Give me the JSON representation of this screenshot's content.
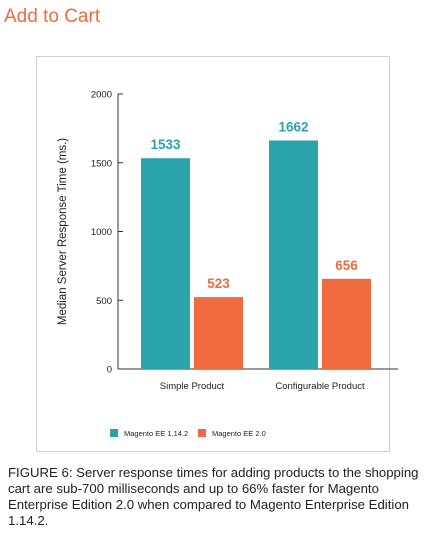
{
  "title": "Add to Cart",
  "caption": "FIGURE 6: Server response times for adding products to the shopping cart are sub-700 milliseconds and up to 66% faster for Magento Enterprise Edition 2.0 when compared to Magento Enterprise Edition 1.14.2.",
  "chart_data": {
    "type": "bar",
    "title": "",
    "xlabel": "",
    "ylabel": "Median Server Response Time (ms.)",
    "ylim": [
      0,
      2000
    ],
    "yticks": [
      0,
      500,
      1000,
      1500,
      2000
    ],
    "ytick_labels": [
      "0",
      "500",
      "1000",
      "1500",
      "2000"
    ],
    "categories": [
      "Simple Product",
      "Configurable Product"
    ],
    "series": [
      {
        "name": "Magento EE 1.14.2",
        "color": "#2aa3aa",
        "values": [
          1533,
          1662
        ],
        "labels": [
          "1533",
          "1662"
        ]
      },
      {
        "name": "Magento EE 2.0",
        "color": "#ef6a3f",
        "values": [
          523,
          656
        ],
        "labels": [
          "523",
          "656"
        ]
      }
    ],
    "grid": false,
    "legend": "bottom-left"
  }
}
